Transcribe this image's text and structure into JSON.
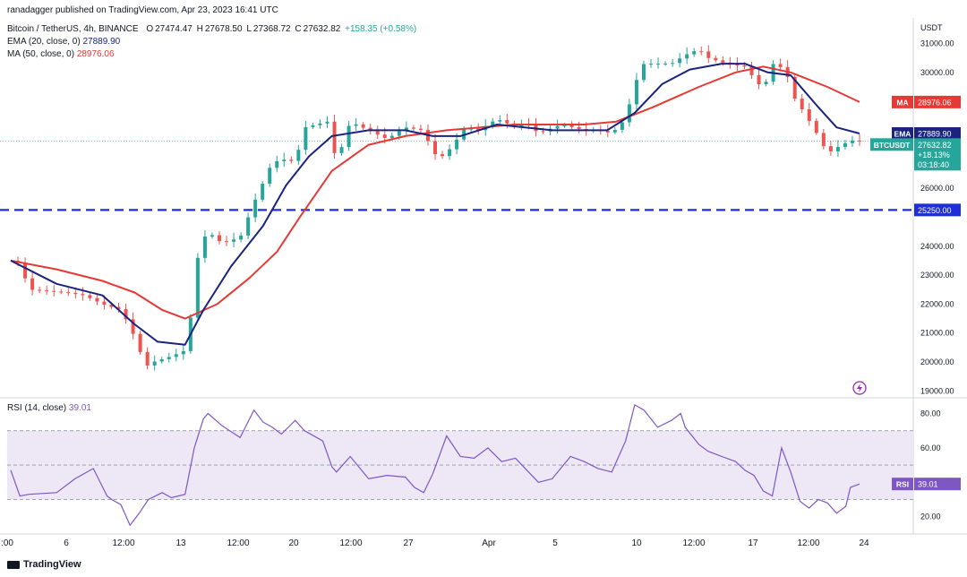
{
  "header": {
    "publisher": "ranadagger published on TradingView.com, Apr 23, 2023 16:41 UTC",
    "symbol": "Bitcoin / TetherUS, 4h, BINANCE",
    "ohlc": {
      "o_label": "O",
      "o": "27474.47",
      "h_label": "H",
      "h": "27678.50",
      "l_label": "L",
      "l": "27368.72",
      "c_label": "C",
      "c": "27632.82",
      "change": "+158.35 (+0.58%)"
    },
    "ema_label": "EMA (20, close, 0)",
    "ema_value": "27889.90",
    "ma_label": "MA (50, close, 0)",
    "ma_value": "28976.06",
    "rsi_label": "RSI (14, close)",
    "rsi_value": "39.01",
    "footer": "TradingView"
  },
  "colors": {
    "up": "#26a69a",
    "down": "#ef5350",
    "ema": "#1a237e",
    "ma": "#e53935",
    "rsi": "#7e57c2",
    "support": "#1e2fd6",
    "rsi_band": "#ede7f6"
  },
  "chart_data": [
    {
      "type": "candlestick",
      "currency": "USDT",
      "y_ticks": [
        19000,
        20000,
        21000,
        22000,
        23000,
        24000,
        25000,
        26000,
        27000,
        28000,
        29000,
        30000,
        31000
      ],
      "y_tick_labels": [
        "19000.00",
        "20000.00",
        "21000.00",
        "22000.00",
        "23000.00",
        "24000.00",
        "",
        "26000.00",
        "",
        "",
        "",
        "30000.00",
        "31000.00"
      ],
      "ylim": [
        18950,
        31200
      ],
      "x_tick_labels": [
        ":00",
        "6",
        "12:00",
        "13",
        "12:00",
        "20",
        "12:00",
        "27",
        "Apr",
        "5",
        "10",
        "12:00",
        "17",
        "12:00",
        "24"
      ],
      "support_level": 25250,
      "support_label": "25250.00",
      "price_tags": {
        "ma_tag": "MA",
        "ma": "28976.06",
        "ema_tag": "EMA",
        "ema": "27889.90",
        "symbol_tag": "BTCUSDT",
        "last": "27632.82",
        "change_pct": "+18.13%",
        "countdown": "03:18:40"
      },
      "candle_count": 118,
      "price_path": [
        [
          0,
          23500
        ],
        [
          2,
          23400
        ],
        [
          4,
          22500
        ],
        [
          12,
          22400
        ],
        [
          16,
          22300
        ],
        [
          20,
          22000
        ],
        [
          24,
          21800
        ],
        [
          26,
          21200
        ],
        [
          28,
          20500
        ],
        [
          29,
          19800
        ],
        [
          31,
          20000
        ],
        [
          35,
          20200
        ],
        [
          38,
          20400
        ],
        [
          40,
          22300
        ],
        [
          41,
          24000
        ],
        [
          43,
          24500
        ],
        [
          46,
          24100
        ],
        [
          50,
          24300
        ],
        [
          53,
          25500
        ],
        [
          57,
          26900
        ],
        [
          60,
          27000
        ],
        [
          62,
          26900
        ],
        [
          64,
          28100
        ],
        [
          69,
          28300
        ],
        [
          71,
          26900
        ],
        [
          74,
          28300
        ],
        [
          78,
          28000
        ],
        [
          82,
          27700
        ],
        [
          86,
          28100
        ],
        [
          90,
          28000
        ],
        [
          92,
          27200
        ],
        [
          94,
          27100
        ],
        [
          96,
          27400
        ],
        [
          99,
          28100
        ],
        [
          102,
          28000
        ],
        [
          106,
          28400
        ],
        [
          110,
          28100
        ],
        [
          112,
          28300
        ],
        [
          115,
          27900
        ],
        [
          120,
          28200
        ],
        [
          125,
          28000
        ],
        [
          128,
          28000
        ],
        [
          131,
          27900
        ],
        [
          134,
          28400
        ],
        [
          136,
          29600
        ],
        [
          138,
          30300
        ],
        [
          144,
          30300
        ],
        [
          147,
          30600
        ],
        [
          150,
          30800
        ],
        [
          152,
          30500
        ],
        [
          156,
          30300
        ],
        [
          160,
          30200
        ],
        [
          162,
          29800
        ],
        [
          164,
          29400
        ],
        [
          166,
          30300
        ],
        [
          169,
          30100
        ],
        [
          170,
          29300
        ],
        [
          173,
          28600
        ],
        [
          176,
          27800
        ],
        [
          178,
          27200
        ],
        [
          180,
          27400
        ],
        [
          183,
          27650
        ],
        [
          185,
          27633
        ]
      ],
      "ema_path": [
        [
          0,
          23500
        ],
        [
          10,
          22700
        ],
        [
          20,
          22300
        ],
        [
          27,
          21300
        ],
        [
          32,
          20700
        ],
        [
          38,
          20600
        ],
        [
          42,
          21800
        ],
        [
          48,
          23300
        ],
        [
          55,
          24700
        ],
        [
          60,
          26100
        ],
        [
          65,
          27100
        ],
        [
          70,
          27800
        ],
        [
          78,
          28000
        ],
        [
          86,
          28000
        ],
        [
          92,
          27800
        ],
        [
          98,
          27800
        ],
        [
          106,
          28200
        ],
        [
          118,
          28000
        ],
        [
          130,
          28000
        ],
        [
          136,
          28600
        ],
        [
          142,
          29600
        ],
        [
          148,
          30100
        ],
        [
          155,
          30300
        ],
        [
          160,
          30300
        ],
        [
          165,
          30000
        ],
        [
          170,
          29900
        ],
        [
          176,
          28800
        ],
        [
          180,
          28100
        ],
        [
          185,
          27890
        ]
      ],
      "ma_path": [
        [
          0,
          23500
        ],
        [
          10,
          23200
        ],
        [
          20,
          22800
        ],
        [
          27,
          22400
        ],
        [
          33,
          21800
        ],
        [
          38,
          21500
        ],
        [
          45,
          22000
        ],
        [
          52,
          22900
        ],
        [
          58,
          23800
        ],
        [
          63,
          25000
        ],
        [
          70,
          26600
        ],
        [
          78,
          27500
        ],
        [
          86,
          27800
        ],
        [
          95,
          28000
        ],
        [
          110,
          28200
        ],
        [
          125,
          28200
        ],
        [
          132,
          28300
        ],
        [
          140,
          28800
        ],
        [
          150,
          29500
        ],
        [
          158,
          30000
        ],
        [
          164,
          30200
        ],
        [
          170,
          30000
        ],
        [
          178,
          29500
        ],
        [
          185,
          28976
        ]
      ]
    },
    {
      "type": "line",
      "title": "RSI (14, close)",
      "y_ticks": [
        20,
        40,
        60,
        80
      ],
      "y_tick_labels": [
        "20.00",
        "",
        "60.00",
        "80.00"
      ],
      "band": [
        30,
        70
      ],
      "midline": 50,
      "ylim": [
        12,
        86
      ],
      "last_tag": "RSI",
      "last_value": "39.01",
      "series": {
        "x": [
          0,
          2,
          4,
          10,
          14,
          18,
          21,
          22,
          24,
          26,
          28,
          30,
          33,
          35,
          38,
          40,
          42,
          43,
          46,
          50,
          53,
          55,
          57,
          59,
          62,
          64,
          68,
          70,
          71,
          74,
          78,
          82,
          86,
          88,
          90,
          92,
          95,
          98,
          101,
          104,
          107,
          110,
          115,
          118,
          122,
          125,
          128,
          131,
          134,
          136,
          138,
          141,
          144,
          146,
          147,
          150,
          152,
          155,
          158,
          160,
          162,
          164,
          166,
          168,
          170,
          172,
          174,
          176,
          178,
          180,
          182,
          183,
          185
        ],
        "values": [
          47,
          32,
          33,
          34,
          42,
          48,
          32,
          30,
          27,
          15,
          22,
          30,
          34,
          31,
          33,
          60,
          77,
          80,
          73,
          66,
          82,
          75,
          72,
          68,
          76,
          70,
          64,
          49,
          46,
          55,
          42,
          44,
          43,
          37,
          34,
          45,
          67,
          55,
          54,
          60,
          52,
          54,
          40,
          42,
          55,
          52,
          48,
          46,
          64,
          85,
          82,
          72,
          76,
          80,
          72,
          62,
          58,
          55,
          52,
          47,
          44,
          35,
          32,
          60,
          46,
          29,
          25,
          30,
          28,
          22,
          26,
          37,
          39
        ]
      }
    }
  ]
}
